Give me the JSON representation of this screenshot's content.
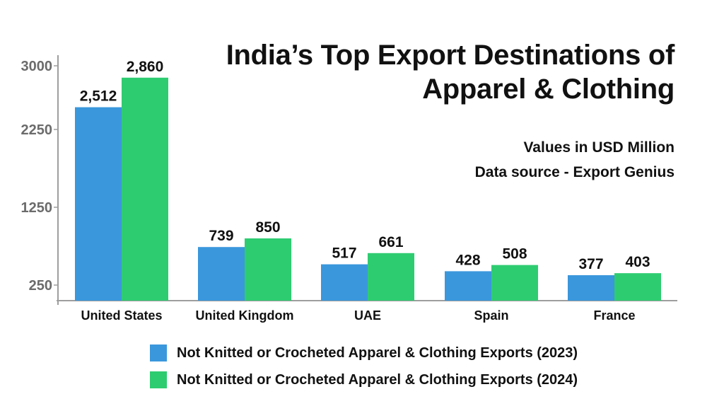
{
  "chart_data": {
    "type": "bar",
    "title": [
      "India’s Top Export Destinations of",
      "Apparel & Clothing"
    ],
    "subtitle": [
      "Values in USD Million",
      "Data source - Export Genius"
    ],
    "categories": [
      "United States",
      "United Kingdom",
      "UAE",
      "Spain",
      "France"
    ],
    "series": [
      {
        "name": "Not Knitted or Crocheted Apparel & Clothing Exports (2023)",
        "values": [
          2512,
          739,
          517,
          428,
          377
        ],
        "labels": [
          "2,512",
          "739",
          "517",
          "428",
          "377"
        ],
        "color": "#3a97dc"
      },
      {
        "name": "Not Knitted or Crocheted Apparel & Clothing Exports (2024)",
        "values": [
          2860,
          850,
          661,
          508,
          403
        ],
        "labels": [
          "2,860",
          "850",
          "661",
          "508",
          "403"
        ],
        "color": "#2ecc71"
      }
    ],
    "y_ticks": [
      250,
      1250,
      2250,
      3000
    ],
    "y_tick_labels": [
      "250",
      "1250",
      "2250",
      "3000"
    ],
    "ylim": [
      0,
      3000
    ],
    "grid": false,
    "legend_position": "bottom"
  }
}
